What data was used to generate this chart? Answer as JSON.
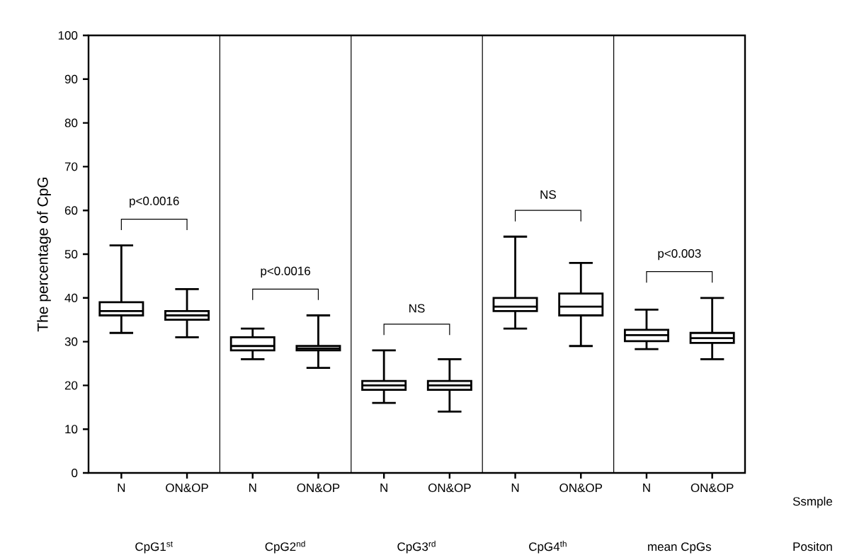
{
  "chart_data": {
    "type": "box",
    "ylabel": "The percentage of CpG",
    "categories": [
      "N",
      "ON&OP",
      "N",
      "ON&OP",
      "N",
      "ON&OP",
      "N",
      "ON&OP",
      "N",
      "ON&OP"
    ],
    "boxes": [
      {
        "low": 32,
        "q1": 36,
        "median": 37,
        "q3": 39,
        "high": 52
      },
      {
        "low": 31,
        "q1": 35,
        "median": 36,
        "q3": 37,
        "high": 42
      },
      {
        "low": 26,
        "q1": 28,
        "median": 29,
        "q3": 31,
        "high": 33
      },
      {
        "low": 24,
        "q1": 28,
        "median": 28.4,
        "q3": 29,
        "high": 36
      },
      {
        "low": 16,
        "q1": 19,
        "median": 20,
        "q3": 21,
        "high": 28
      },
      {
        "low": 14,
        "q1": 19,
        "median": 20,
        "q3": 21,
        "high": 26
      },
      {
        "low": 33,
        "q1": 37,
        "median": 38,
        "q3": 40,
        "high": 54
      },
      {
        "low": 29,
        "q1": 36,
        "median": 38,
        "q3": 41,
        "high": 48
      },
      {
        "low": 28.3,
        "q1": 30.1,
        "median": 31.5,
        "q3": 32.7,
        "high": 37.3
      },
      {
        "low": 26,
        "q1": 29.7,
        "median": 30.8,
        "q3": 32,
        "high": 40
      }
    ],
    "color": "#000000",
    "ylim": [
      0,
      100
    ],
    "yticks": [
      0,
      10,
      20,
      30,
      40,
      50,
      60,
      70,
      80,
      90,
      100
    ],
    "grid": false,
    "annotations": [
      "p<0.0016",
      "p<0.0016",
      "NS",
      "NS",
      "p<0.003",
      "Ssmple",
      "CpG1$^{st}$",
      "CpG2$^{nd}$",
      "CpG3$^{rd}$",
      "CpG4$^{th}$",
      "mean CpGs",
      "Positon"
    ]
  }
}
